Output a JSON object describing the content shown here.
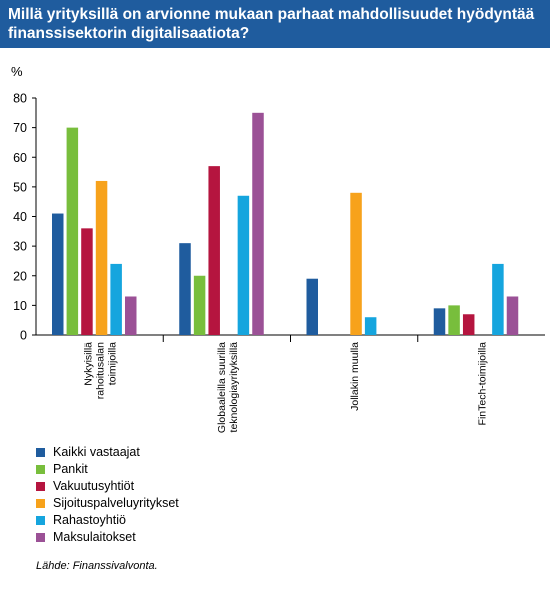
{
  "title": "Millä yrityksillä on arvionne mukaan parhaat mahdollisuudet hyödyntää finanssisektorin digitalisaatiota?",
  "unit_label": "%",
  "source": "Lähde: Finanssivalvonta.",
  "colors": {
    "title_bg": "#1f5c9e",
    "axis": "#000000"
  },
  "chart_data": {
    "type": "bar",
    "title": "Millä yrityksillä on arvionne mukaan parhaat mahdollisuudet hyödyntää finanssisektorin digitalisaatiota?",
    "xlabel": "",
    "ylabel": "%",
    "ylim": [
      0,
      80
    ],
    "yticks": [
      0,
      10,
      20,
      30,
      40,
      50,
      60,
      70,
      80
    ],
    "grid": false,
    "legend_position": "bottom-left",
    "categories": [
      "Nykyisillä rahoitusalan toimijoilla",
      "Globaaleilla suurilla teknologiayrityksillä",
      "Jollakin muulla",
      "FinTech-toimijoilla"
    ],
    "category_lines": [
      [
        "Nykyisillä",
        "rahoitusalan",
        "toimijoilla"
      ],
      [
        "Globaaleilla suurilla",
        "teknologiayrityksillä"
      ],
      [
        "Jollakin muulla"
      ],
      [
        "FinTech-toimijoilla"
      ]
    ],
    "series": [
      {
        "name": "Kaikki vastaajat",
        "color": "#1f5c9e",
        "values": [
          41,
          31,
          19,
          9
        ]
      },
      {
        "name": "Pankit",
        "color": "#78be3c",
        "values": [
          70,
          20,
          0,
          10
        ]
      },
      {
        "name": "Vakuutusyhtiöt",
        "color": "#b5153f",
        "values": [
          36,
          57,
          0,
          7
        ]
      },
      {
        "name": "Sijoituspalveluyritykset",
        "color": "#f7a21b",
        "values": [
          52,
          0,
          48,
          0
        ]
      },
      {
        "name": "Rahastoyhtiö",
        "color": "#15a5de",
        "values": [
          24,
          47,
          6,
          24
        ]
      },
      {
        "name": "Maksulaitokset",
        "color": "#9b5196",
        "values": [
          13,
          75,
          0,
          13
        ]
      }
    ]
  }
}
